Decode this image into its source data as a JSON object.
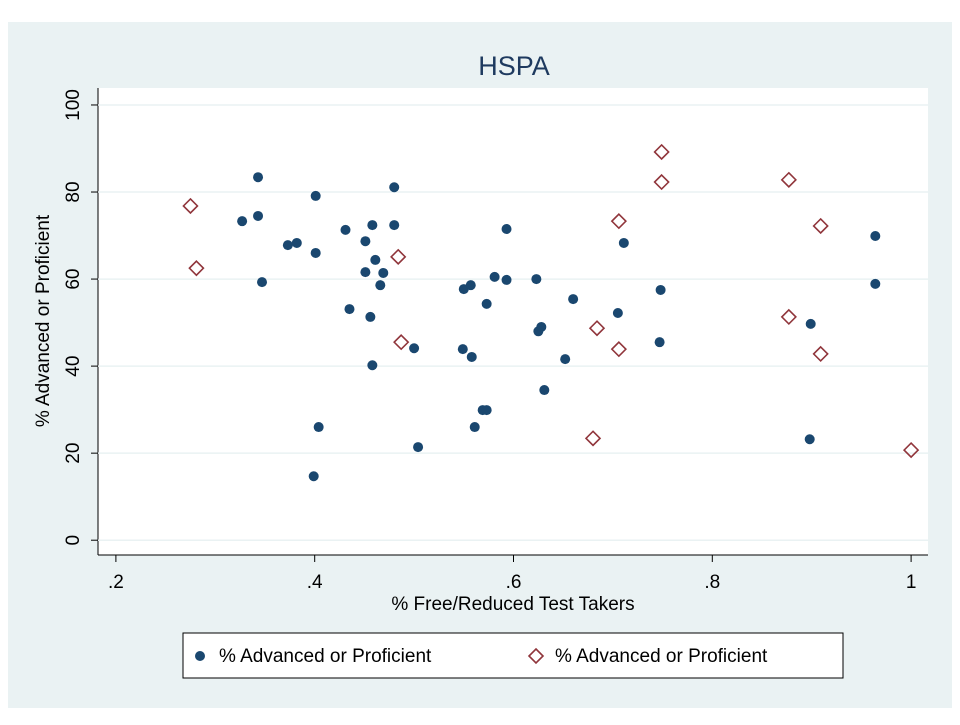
{
  "chart_data": {
    "type": "scatter",
    "title": "HSPA",
    "x_label": "% Free/Reduced Test Takers",
    "y_label": "% Advanced or Proficient",
    "xlim": [
      0.182,
      1.017
    ],
    "ylim": [
      -3.4,
      103.9
    ],
    "xticks": [
      {
        "value": 0.2,
        "label": ".2"
      },
      {
        "value": 0.4,
        "label": ".4"
      },
      {
        "value": 0.6,
        "label": ".6"
      },
      {
        "value": 0.8,
        "label": ".8"
      },
      1
    ],
    "yticks": [
      0,
      20,
      40,
      60,
      80,
      100
    ],
    "grid": true,
    "legend": "bottom",
    "series": [
      {
        "name": "% Advanced or Proficient",
        "color": "#1a476f",
        "marker": "circle",
        "x": [
          0.327,
          0.343,
          0.343,
          0.347,
          0.373,
          0.382,
          0.401,
          0.401,
          0.399,
          0.404,
          0.431,
          0.435,
          0.451,
          0.458,
          0.451,
          0.461,
          0.469,
          0.466,
          0.456,
          0.458,
          0.48,
          0.48,
          0.5,
          0.504,
          0.549,
          0.55,
          0.557,
          0.558,
          0.561,
          0.569,
          0.573,
          0.573,
          0.581,
          0.593,
          0.593,
          0.623,
          0.625,
          0.628,
          0.631,
          0.652,
          0.66,
          0.705,
          0.711,
          0.747,
          0.748,
          0.898,
          0.899,
          0.964,
          0.964
        ],
        "values": [
          73.3,
          83.4,
          74.5,
          59.3,
          67.8,
          68.3,
          79.1,
          66.0,
          14.7,
          26.0,
          71.3,
          53.1,
          68.7,
          72.4,
          61.6,
          64.4,
          61.4,
          58.6,
          51.3,
          40.2,
          81.1,
          72.4,
          44.1,
          21.4,
          43.9,
          57.7,
          58.6,
          42.1,
          26.0,
          29.9,
          29.9,
          54.3,
          60.5,
          71.5,
          59.8,
          60.0,
          48.0,
          49.0,
          34.5,
          41.6,
          55.4,
          52.2,
          68.3,
          45.5,
          57.5,
          23.2,
          49.7,
          58.9,
          69.9
        ]
      },
      {
        "name": "% Advanced or Proficient",
        "color": "#90353b",
        "marker": "diamond",
        "x": [
          0.275,
          0.281,
          0.484,
          0.487,
          0.68,
          0.684,
          0.706,
          0.706,
          0.749,
          0.749,
          0.877,
          0.877,
          0.909,
          0.909,
          1.0
        ],
        "values": [
          76.8,
          62.5,
          65.1,
          45.5,
          23.4,
          48.7,
          73.3,
          43.9,
          89.2,
          82.3,
          82.8,
          51.3,
          72.2,
          42.8,
          20.7
        ]
      }
    ]
  }
}
